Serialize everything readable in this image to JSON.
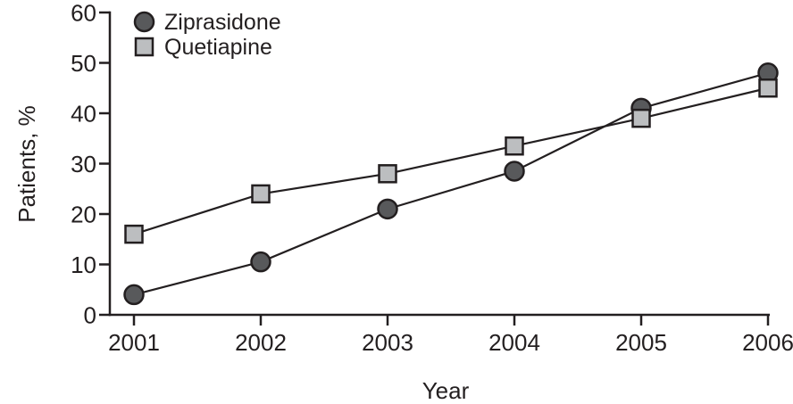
{
  "figure": {
    "background": "#ffffff",
    "ink_color": "#231f20"
  },
  "chart_data": {
    "type": "line",
    "title": "",
    "xlabel": "Year",
    "ylabel": "Patients, %",
    "categories": [
      "2001",
      "2002",
      "2003",
      "2004",
      "2005",
      "2006"
    ],
    "yticks": [
      0,
      10,
      20,
      30,
      40,
      50,
      60
    ],
    "ylim": [
      0,
      60
    ],
    "grid": false,
    "legend_position": "top-left-inside",
    "series": [
      {
        "name": "Ziprasidone",
        "marker": "circle",
        "marker_fill": "#58595b",
        "marker_stroke": "#231f20",
        "line_color": "#231f20",
        "values": [
          4,
          10.5,
          21,
          28.5,
          41,
          48
        ]
      },
      {
        "name": "Quetiapine",
        "marker": "square",
        "marker_fill": "#bcbec0",
        "marker_stroke": "#231f20",
        "line_color": "#231f20",
        "values": [
          16,
          24,
          28,
          33.5,
          39,
          45
        ]
      }
    ]
  }
}
